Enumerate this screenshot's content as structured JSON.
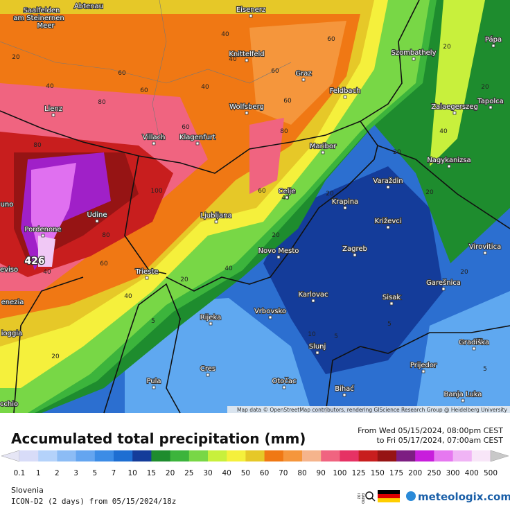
{
  "map": {
    "cities": [
      "Saalfelden",
      "am Steinernen",
      "Meer",
      "Abtenau",
      "Eisenerz",
      "Knittelfeld",
      "Szombathely",
      "Pápa",
      "Graz",
      "Feldbach",
      "Lienz",
      "Wolfsberg",
      "Zalaegerszeg",
      "Tapolca",
      "Villach",
      "Klagenfurt",
      "Maribor",
      "Nagykanizsa",
      "Varaždin",
      "Celje",
      "Krapina",
      "uno",
      "Pordenone",
      "Udine",
      "Ljubljana",
      "Križevci",
      "Novo Mesto",
      "Zagreb",
      "Virovitica",
      "eviso",
      "Trieste",
      "Karlovac",
      "Garešnica",
      "Sisak",
      "enezia",
      "Vrbovsko",
      "Rijeka",
      "ioggia",
      "Gradiška",
      "Slunj",
      "Prijedor",
      "Cres",
      "Pula",
      "Otočac",
      "Bihać",
      "Banja Luka",
      "cchio"
    ],
    "contour_labels": [
      40,
      40,
      60,
      60,
      60,
      40,
      80,
      60,
      60,
      40,
      20,
      80,
      60,
      60,
      40,
      40,
      20,
      20,
      20,
      20,
      40,
      20,
      20,
      20,
      5,
      5,
      5,
      5,
      10,
      20,
      20,
      40,
      60,
      80,
      100,
      80,
      40
    ],
    "max_label": "426",
    "attribution": "Map data © OpenStreetMap contributors, rendering GIScience Research Group @ Heidelberg University"
  },
  "footer": {
    "title": "Accumulated total precipitation (mm)",
    "time_from": "From Wed 05/15/2024, 08:00pm CEST",
    "time_to": "to Fri 05/17/2024, 07:00am CEST",
    "region": "Slovenia",
    "model": "ICON-D2 (2 days) from 05/15/2024/18z",
    "badge_top": "RAPID",
    "badge_bottom": "ID2",
    "brand": "meteologix.com"
  },
  "legend": {
    "values": [
      0.1,
      1,
      2,
      3,
      5,
      7,
      10,
      15,
      20,
      25,
      30,
      40,
      50,
      60,
      70,
      80,
      90,
      100,
      125,
      150,
      175,
      200,
      250,
      300,
      400,
      500
    ],
    "colors": [
      "#e6e6f5",
      "#d8dcf8",
      "#b4d2fa",
      "#8cbcf5",
      "#64a5f0",
      "#3c8ce6",
      "#1e6ed2",
      "#143c9a",
      "#1e8c2e",
      "#3cb43c",
      "#78d746",
      "#c8f03c",
      "#f5f03c",
      "#e6c828",
      "#f07814",
      "#f5963c",
      "#f5b48c",
      "#f06480",
      "#e63264",
      "#c81e1e",
      "#961414",
      "#7d1e82",
      "#c81edc",
      "#e678f0",
      "#f0b4f5",
      "#f8e6f8",
      "#c8c8c8"
    ]
  }
}
